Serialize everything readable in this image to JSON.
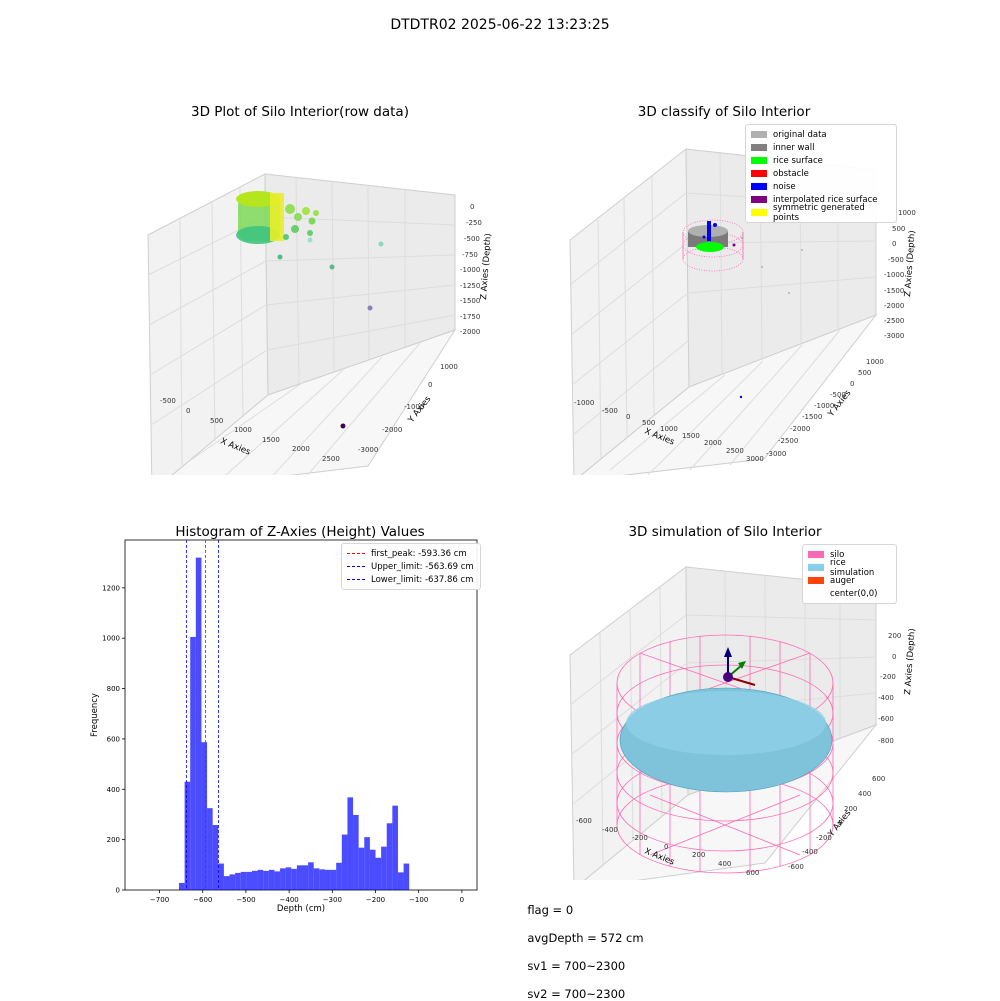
{
  "figure": {
    "suptitle": "DTDTR02 2025-06-22 13:23:25",
    "footer": {
      "flag": "flag = 0",
      "avg": "avgDepth = 572 cm",
      "sv1": "sv1 = 700~2300",
      "sv2": "sv2 = 700~2300"
    }
  },
  "panels": {
    "raw": {
      "title": "3D Plot of Silo Interior(row data)",
      "xlabel": "X Axies",
      "ylabel": "Y Axies",
      "zlabel": "Z Axies (Depth)",
      "xticks": [
        "-500",
        "0",
        "500",
        "1000",
        "1500",
        "2000",
        "2500"
      ],
      "yticks": [
        "1000",
        "0",
        "-1000",
        "-2000",
        "-3000"
      ],
      "zticks": [
        "0",
        "-250",
        "-500",
        "-750",
        "-1000",
        "-1250",
        "-1500",
        "-1750",
        "-2000"
      ]
    },
    "classify": {
      "title": "3D classify of Silo Interior",
      "xlabel": "X Axies",
      "ylabel": "Y Axies",
      "zlabel": "Z Axies (Depth)",
      "xticks": [
        "-1000",
        "-500",
        "0",
        "500",
        "1000",
        "1500",
        "2000",
        "2500",
        "3000"
      ],
      "yticks": [
        "1000",
        "500",
        "0",
        "-500",
        "-1000",
        "-1500",
        "-2000",
        "-2500",
        "-3000"
      ],
      "zticks": [
        "1000",
        "500",
        "0",
        "-500",
        "-1000",
        "-1500",
        "-2000",
        "-2500",
        "-3000"
      ],
      "legend": [
        {
          "label": "original data",
          "color": "#b0b0b0"
        },
        {
          "label": "inner wall",
          "color": "#808080"
        },
        {
          "label": "rice surface",
          "color": "#00ff00"
        },
        {
          "label": "obstacle",
          "color": "#ff0000"
        },
        {
          "label": "noise",
          "color": "#0000ff"
        },
        {
          "label": "interpolated rice surface",
          "color": "#800080"
        },
        {
          "label": "symmetric generated points",
          "color": "#ffff00"
        }
      ]
    },
    "sim": {
      "title": "3D simulation of Silo Interior",
      "xlabel": "X Axies",
      "ylabel": "Y Axies",
      "zlabel": "Z Axies (Depth)",
      "xticks": [
        "-600",
        "-400",
        "-200",
        "0",
        "200",
        "400",
        "600"
      ],
      "yticks": [
        "600",
        "400",
        "200",
        "0",
        "-200",
        "-400",
        "-600"
      ],
      "zticks": [
        "200",
        "0",
        "-200",
        "-400",
        "-600",
        "-800"
      ],
      "legend": [
        {
          "label": "silo",
          "color": "#ff69b4"
        },
        {
          "label": "rice simulation",
          "color": "#87ceeb"
        },
        {
          "label": "auger",
          "color": "#ff4500"
        },
        {
          "label": "center(0,0)",
          "color": "none"
        }
      ]
    }
  },
  "chart_data": [
    {
      "type": "bar",
      "title": "Histogram of Z-Axies (Height) Values",
      "xlabel": "Depth (cm)",
      "ylabel": "Frequency",
      "xlim": [
        -780,
        35
      ],
      "ylim": [
        0,
        1390
      ],
      "xticks": [
        -700,
        -600,
        -500,
        -400,
        -300,
        -200,
        -100,
        0
      ],
      "yticks": [
        0,
        200,
        400,
        600,
        800,
        1000,
        1200
      ],
      "bins": [
        {
          "x0": -655,
          "x1": -642,
          "y": 28
        },
        {
          "x0": -642,
          "x1": -629,
          "y": 430
        },
        {
          "x0": -629,
          "x1": -616,
          "y": 1005
        },
        {
          "x0": -616,
          "x1": -603,
          "y": 1320
        },
        {
          "x0": -603,
          "x1": -590,
          "y": 587
        },
        {
          "x0": -590,
          "x1": -577,
          "y": 325
        },
        {
          "x0": -577,
          "x1": -564,
          "y": 258
        },
        {
          "x0": -564,
          "x1": -551,
          "y": 105
        },
        {
          "x0": -551,
          "x1": -538,
          "y": 55
        },
        {
          "x0": -538,
          "x1": -525,
          "y": 62
        },
        {
          "x0": -525,
          "x1": -512,
          "y": 68
        },
        {
          "x0": -512,
          "x1": -499,
          "y": 72
        },
        {
          "x0": -499,
          "x1": -486,
          "y": 72
        },
        {
          "x0": -486,
          "x1": -473,
          "y": 76
        },
        {
          "x0": -473,
          "x1": -460,
          "y": 80
        },
        {
          "x0": -460,
          "x1": -447,
          "y": 76
        },
        {
          "x0": -447,
          "x1": -434,
          "y": 80
        },
        {
          "x0": -434,
          "x1": -421,
          "y": 74
        },
        {
          "x0": -421,
          "x1": -408,
          "y": 86
        },
        {
          "x0": -408,
          "x1": -395,
          "y": 90
        },
        {
          "x0": -395,
          "x1": -382,
          "y": 84
        },
        {
          "x0": -382,
          "x1": -369,
          "y": 98
        },
        {
          "x0": -369,
          "x1": -356,
          "y": 98
        },
        {
          "x0": -356,
          "x1": -343,
          "y": 110
        },
        {
          "x0": -343,
          "x1": -330,
          "y": 86
        },
        {
          "x0": -330,
          "x1": -317,
          "y": 82
        },
        {
          "x0": -317,
          "x1": -304,
          "y": 80
        },
        {
          "x0": -304,
          "x1": -291,
          "y": 80
        },
        {
          "x0": -291,
          "x1": -278,
          "y": 108
        },
        {
          "x0": -278,
          "x1": -265,
          "y": 220
        },
        {
          "x0": -265,
          "x1": -252,
          "y": 368
        },
        {
          "x0": -252,
          "x1": -239,
          "y": 298
        },
        {
          "x0": -239,
          "x1": -226,
          "y": 168
        },
        {
          "x0": -226,
          "x1": -213,
          "y": 210
        },
        {
          "x0": -213,
          "x1": -200,
          "y": 160
        },
        {
          "x0": -200,
          "x1": -187,
          "y": 128
        },
        {
          "x0": -187,
          "x1": -174,
          "y": 172
        },
        {
          "x0": -174,
          "x1": -161,
          "y": 265
        },
        {
          "x0": -161,
          "x1": -148,
          "y": 335
        },
        {
          "x0": -148,
          "x1": -135,
          "y": 70
        },
        {
          "x0": -135,
          "x1": -122,
          "y": 105
        }
      ],
      "lines": [
        {
          "label": "first_peak: -593.36 cm",
          "x": -593.36,
          "color": "#ff0000"
        },
        {
          "label": "Upper_limit: -563.69 cm",
          "x": -563.69,
          "color": "#0000ff"
        },
        {
          "label": "Lower_limit: -637.86 cm",
          "x": -637.86,
          "color": "#0000ff"
        }
      ]
    }
  ]
}
